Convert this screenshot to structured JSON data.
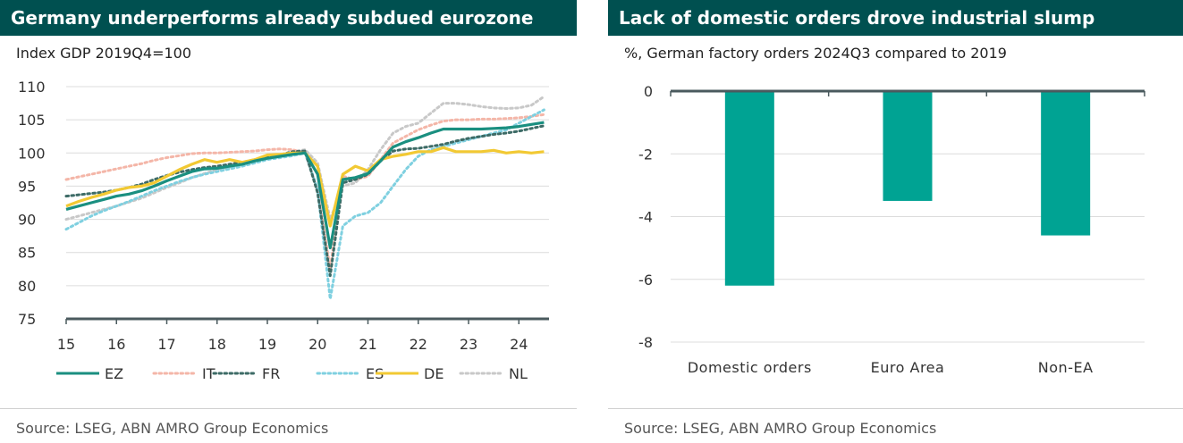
{
  "left": {
    "title": "Germany underperforms already subdued eurozone",
    "subtitle": "Index GDP 2019Q4=100",
    "source": "Source: LSEG, ABN AMRO Group Economics"
  },
  "right": {
    "title": "Lack of domestic orders drove industrial slump",
    "subtitle": "%, German factory orders 2024Q3 compared to 2019",
    "source": "Source: LSEG, ABN AMRO Group Economics"
  },
  "colors": {
    "title_bg": "#005050",
    "EZ": "#1a8f80",
    "IT": "#f4b6a8",
    "FR": "#3d6b66",
    "ES": "#7fd0e0",
    "DE": "#f2c933",
    "NL": "#c8c8c8",
    "bar": "#00a393",
    "axis": "#4a5a5e",
    "grid": "#dcdcdc"
  },
  "chart_data": [
    {
      "type": "line",
      "title": "Germany underperforms already subdued eurozone",
      "ylabel": "Index GDP 2019Q4=100",
      "xlabel": "",
      "xlim": [
        15,
        24.6
      ],
      "ylim": [
        75,
        110
      ],
      "xticks": [
        "15",
        "16",
        "17",
        "18",
        "19",
        "20",
        "21",
        "22",
        "23",
        "24"
      ],
      "yticks": [
        "110",
        "105",
        "100",
        "95",
        "90",
        "85",
        "80",
        "75"
      ],
      "grid": true,
      "legend_position": "bottom",
      "series": [
        {
          "name": "EZ",
          "style": "solid",
          "x": [
            15.0,
            15.25,
            15.5,
            15.75,
            16.0,
            16.25,
            16.5,
            16.75,
            17.0,
            17.25,
            17.5,
            17.75,
            18.0,
            18.25,
            18.5,
            18.75,
            19.0,
            19.25,
            19.5,
            19.75,
            20.0,
            20.25,
            20.5,
            20.75,
            21.0,
            21.25,
            21.5,
            21.75,
            22.0,
            22.25,
            22.5,
            22.75,
            23.0,
            23.25,
            23.5,
            23.75,
            24.0,
            24.25,
            24.5
          ],
          "y": [
            91.5,
            92.0,
            92.5,
            93.0,
            93.5,
            93.8,
            94.3,
            95.0,
            95.8,
            96.5,
            97.2,
            97.6,
            97.7,
            98.0,
            98.3,
            98.8,
            99.2,
            99.5,
            99.8,
            100.0,
            96.8,
            85.7,
            96.0,
            96.3,
            96.9,
            98.8,
            100.9,
            101.7,
            102.3,
            103.0,
            103.6,
            103.6,
            103.6,
            103.6,
            103.7,
            103.8,
            104.0,
            104.3,
            104.6
          ]
        },
        {
          "name": "IT",
          "style": "dotted",
          "x": [
            15.0,
            15.25,
            15.5,
            15.75,
            16.0,
            16.25,
            16.5,
            16.75,
            17.0,
            17.25,
            17.5,
            17.75,
            18.0,
            18.25,
            18.5,
            18.75,
            19.0,
            19.25,
            19.5,
            19.75,
            20.0,
            20.25,
            20.5,
            20.75,
            21.0,
            21.25,
            21.5,
            21.75,
            22.0,
            22.25,
            22.5,
            22.75,
            23.0,
            23.25,
            23.5,
            23.75,
            24.0,
            24.25,
            24.5
          ],
          "y": [
            96.0,
            96.4,
            96.8,
            97.2,
            97.6,
            98.0,
            98.4,
            98.9,
            99.3,
            99.6,
            99.9,
            100.0,
            100.0,
            100.1,
            100.2,
            100.3,
            100.5,
            100.6,
            100.5,
            100.0,
            94.5,
            82.5,
            96.5,
            96.0,
            96.5,
            99.0,
            101.5,
            102.5,
            103.5,
            104.2,
            104.8,
            105.0,
            105.0,
            105.1,
            105.1,
            105.2,
            105.3,
            105.5,
            105.8
          ]
        },
        {
          "name": "FR",
          "style": "dotted",
          "x": [
            15.0,
            15.25,
            15.5,
            15.75,
            16.0,
            16.25,
            16.5,
            16.75,
            17.0,
            17.25,
            17.5,
            17.75,
            18.0,
            18.25,
            18.5,
            18.75,
            19.0,
            19.25,
            19.5,
            19.75,
            20.0,
            20.25,
            20.5,
            20.75,
            21.0,
            21.25,
            21.5,
            21.75,
            22.0,
            22.25,
            22.5,
            22.75,
            23.0,
            23.25,
            23.5,
            23.75,
            24.0,
            24.25,
            24.5
          ],
          "y": [
            93.5,
            93.7,
            93.9,
            94.1,
            94.4,
            94.8,
            95.3,
            96.0,
            96.6,
            97.1,
            97.5,
            97.8,
            98.0,
            98.3,
            98.6,
            99.0,
            99.3,
            99.7,
            100.2,
            100.3,
            94.0,
            81.5,
            95.5,
            96.0,
            96.8,
            98.8,
            100.3,
            100.6,
            100.7,
            101.0,
            101.3,
            101.8,
            102.2,
            102.5,
            102.8,
            103.0,
            103.3,
            103.7,
            104.1
          ]
        },
        {
          "name": "ES",
          "style": "dotted",
          "x": [
            15.0,
            15.25,
            15.5,
            15.75,
            16.0,
            16.25,
            16.5,
            16.75,
            17.0,
            17.25,
            17.5,
            17.75,
            18.0,
            18.25,
            18.5,
            18.75,
            19.0,
            19.25,
            19.5,
            19.75,
            20.0,
            20.25,
            20.5,
            20.75,
            21.0,
            21.25,
            21.5,
            21.75,
            22.0,
            22.25,
            22.5,
            22.75,
            23.0,
            23.25,
            23.5,
            23.75,
            24.0,
            24.25,
            24.5
          ],
          "y": [
            88.5,
            89.5,
            90.5,
            91.3,
            92.0,
            92.7,
            93.5,
            94.3,
            95.0,
            95.7,
            96.3,
            96.8,
            97.2,
            97.6,
            98.0,
            98.5,
            99.0,
            99.3,
            99.6,
            100.0,
            94.5,
            78.0,
            89.0,
            90.5,
            91.0,
            92.5,
            95.0,
            97.5,
            99.5,
            100.5,
            101.0,
            101.5,
            102.0,
            102.5,
            103.0,
            103.5,
            104.5,
            105.5,
            106.5
          ]
        },
        {
          "name": "DE",
          "style": "solid",
          "x": [
            15.0,
            15.25,
            15.5,
            15.75,
            16.0,
            16.25,
            16.5,
            16.75,
            17.0,
            17.25,
            17.5,
            17.75,
            18.0,
            18.25,
            18.5,
            18.75,
            19.0,
            19.25,
            19.5,
            19.75,
            20.0,
            20.25,
            20.5,
            20.75,
            21.0,
            21.25,
            21.5,
            21.75,
            22.0,
            22.25,
            22.5,
            22.75,
            23.0,
            23.25,
            23.5,
            23.75,
            24.0,
            24.25,
            24.5
          ],
          "y": [
            92.0,
            92.7,
            93.3,
            93.8,
            94.4,
            94.8,
            95.0,
            95.5,
            96.5,
            97.5,
            98.3,
            99.0,
            98.6,
            99.0,
            98.6,
            99.0,
            99.7,
            99.8,
            100.0,
            100.0,
            98.0,
            89.0,
            96.8,
            98.0,
            97.3,
            99.0,
            99.5,
            99.8,
            100.2,
            100.2,
            100.8,
            100.2,
            100.2,
            100.2,
            100.4,
            100.0,
            100.2,
            100.0,
            100.2
          ]
        },
        {
          "name": "NL",
          "style": "dotted",
          "x": [
            15.0,
            15.25,
            15.5,
            15.75,
            16.0,
            16.25,
            16.5,
            16.75,
            17.0,
            17.25,
            17.5,
            17.75,
            18.0,
            18.25,
            18.5,
            18.75,
            19.0,
            19.25,
            19.5,
            19.75,
            20.0,
            20.25,
            20.5,
            20.75,
            21.0,
            21.25,
            21.5,
            21.75,
            22.0,
            22.25,
            22.5,
            22.75,
            23.0,
            23.25,
            23.5,
            23.75,
            24.0,
            24.25,
            24.5
          ],
          "y": [
            90.0,
            90.5,
            91.0,
            91.5,
            92.0,
            92.6,
            93.2,
            94.0,
            94.8,
            95.5,
            96.3,
            96.9,
            97.5,
            97.9,
            98.4,
            98.9,
            99.3,
            99.7,
            100.2,
            100.5,
            98.5,
            90.0,
            95.0,
            95.5,
            97.5,
            100.5,
            103.0,
            104.0,
            104.5,
            106.0,
            107.5,
            107.5,
            107.3,
            107.0,
            106.8,
            106.7,
            106.8,
            107.2,
            108.5
          ]
        }
      ]
    },
    {
      "type": "bar",
      "title": "Lack of domestic orders drove industrial slump",
      "ylabel": "%, German factory orders 2024Q3 compared to 2019",
      "xlabel": "",
      "categories": [
        "Domestic orders",
        "Euro Area",
        "Non-EA"
      ],
      "values": [
        -6.2,
        -3.5,
        -4.6
      ],
      "ylim": [
        -8,
        0
      ],
      "yticks": [
        "0",
        "-2",
        "-4",
        "-6",
        "-8"
      ],
      "grid": true
    }
  ]
}
